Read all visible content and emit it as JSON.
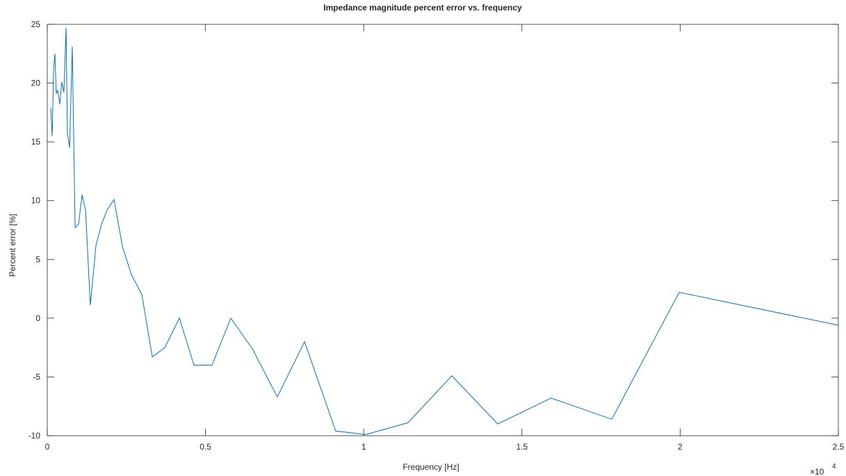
{
  "chart_data": {
    "type": "line",
    "title": "Impedance magnitude percent error vs. frequency",
    "x_label": "Frequency [Hz]",
    "y_label": "Percent error [%]",
    "x_multiplier": "×10",
    "x_multiplier_exponent": "4",
    "x": [
      110,
      155,
      200,
      240,
      285,
      330,
      395,
      460,
      525,
      595,
      635,
      705,
      790,
      880,
      990,
      1100,
      1210,
      1360,
      1540,
      1715,
      1890,
      2110,
      2375,
      2660,
      2990,
      3320,
      3715,
      4175,
      4635,
      5205,
      5800,
      6480,
      7270,
      8130,
      9115,
      10060,
      11400,
      12785,
      14235,
      15925,
      17840,
      19970,
      25000
    ],
    "series": [
      {
        "name": "Percent error",
        "color": "#0072bd",
        "values": [
          17.9,
          15.5,
          21.2,
          22.5,
          19.1,
          19.4,
          18.2,
          20.1,
          19.2,
          24.7,
          15.8,
          14.5,
          23.1,
          7.7,
          8.0,
          10.5,
          9.2,
          1.1,
          6.2,
          8.0,
          9.2,
          10.1,
          6.1,
          3.7,
          2.0,
          -3.3,
          -2.5,
          0.0,
          -4.0,
          -4.0,
          0.0,
          -2.6,
          -6.7,
          -2.0,
          -9.6,
          -9.9,
          -8.9,
          -4.9,
          -9.0,
          -6.8,
          -8.6,
          2.2,
          -0.6
        ]
      }
    ],
    "xlim": [
      0,
      25000
    ],
    "xticks": [
      {
        "value": 0,
        "label": "0"
      },
      {
        "value": 5000,
        "label": "0.5"
      },
      {
        "value": 10000,
        "label": "1"
      },
      {
        "value": 15000,
        "label": "1.5"
      },
      {
        "value": 20000,
        "label": "2"
      },
      {
        "value": 25000,
        "label": "2.5"
      }
    ],
    "ylim": [
      -10,
      25
    ],
    "yticks": [
      -10,
      -5,
      0,
      5,
      10,
      15,
      20,
      25
    ],
    "grid": false
  }
}
